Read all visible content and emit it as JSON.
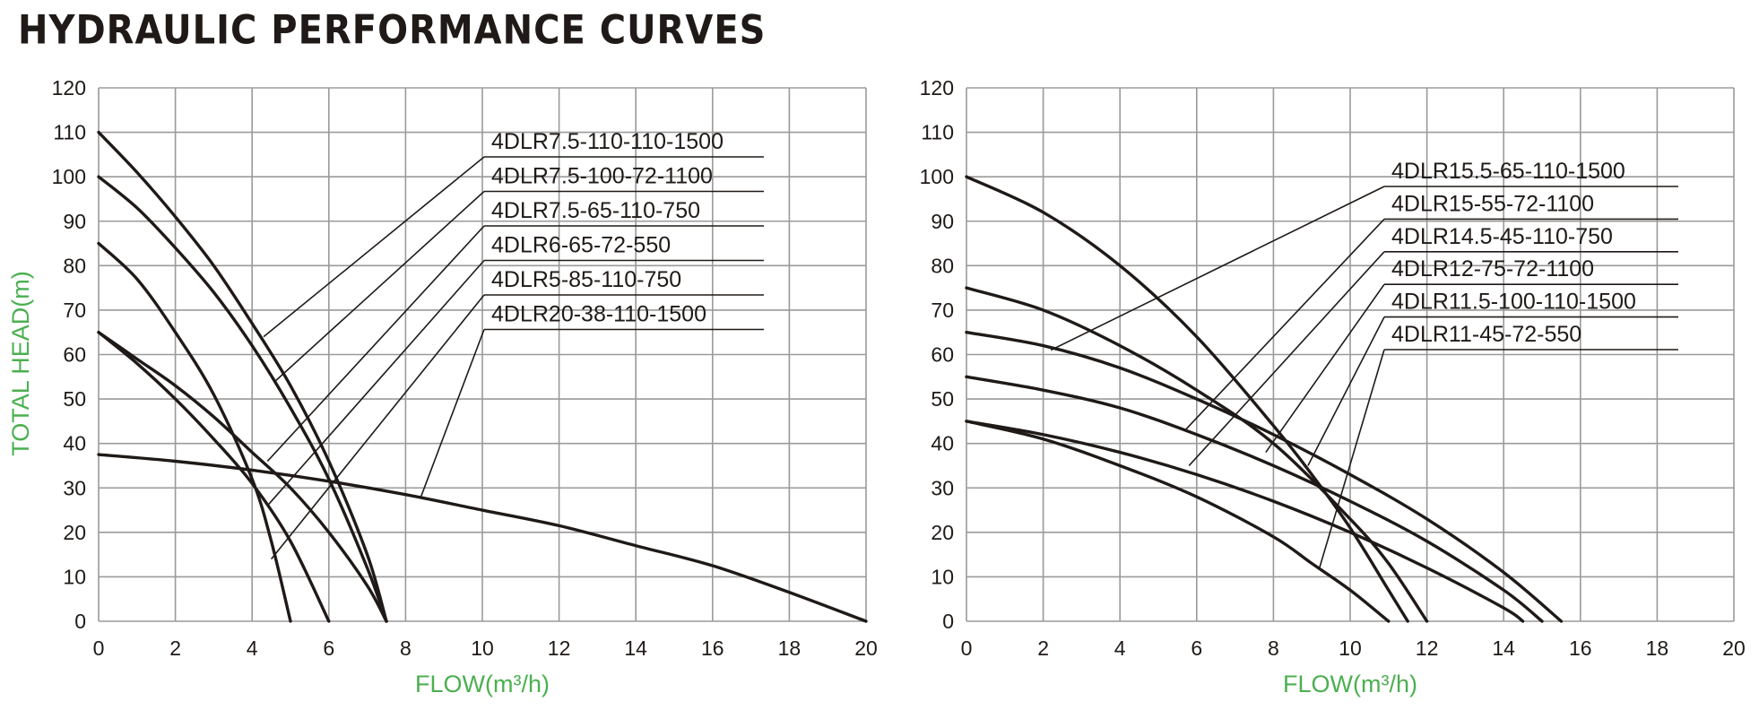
{
  "page": {
    "title": "HYDRAULIC PERFORMANCE CURVES"
  },
  "colors": {
    "grid": "#9a9a9a",
    "curve": "#1f1a17",
    "axis_label": "#4caf50",
    "text": "#1f1a17"
  },
  "chart_data": [
    {
      "type": "line",
      "title": "",
      "xlabel": "FLOW(m³/h)",
      "ylabel": "TOTAL HEAD(m)",
      "xlim": [
        0,
        20
      ],
      "ylim": [
        0,
        120
      ],
      "x_ticks": [
        "0",
        "2",
        "4",
        "6",
        "8",
        "10",
        "12",
        "14",
        "16",
        "18",
        "20"
      ],
      "y_ticks": [
        "0",
        "10",
        "20",
        "30",
        "40",
        "50",
        "60",
        "70",
        "80",
        "90",
        "100",
        "110",
        "120"
      ],
      "grid": true,
      "series": [
        {
          "name": "4DLR7.5-110-110-1500",
          "x": [
            0,
            1,
            2,
            3,
            4,
            5,
            6,
            7,
            7.5
          ],
          "y": [
            110,
            101,
            91,
            80,
            67,
            53,
            36,
            15,
            0
          ]
        },
        {
          "name": "4DLR7.5-100-72-1100",
          "x": [
            0,
            1,
            2,
            3,
            4,
            5,
            6,
            7,
            7.5
          ],
          "y": [
            100,
            93,
            84,
            74,
            62,
            48,
            32,
            12,
            0
          ]
        },
        {
          "name": "4DLR7.5-65-110-750",
          "x": [
            0,
            1,
            2,
            3,
            4,
            5,
            6,
            7,
            7.5
          ],
          "y": [
            65,
            59,
            53,
            46,
            38,
            30,
            20,
            8,
            0
          ]
        },
        {
          "name": "4DLR6-65-72-550",
          "x": [
            0,
            1,
            2,
            3,
            4,
            5,
            6
          ],
          "y": [
            65,
            58,
            50,
            41,
            31,
            18,
            0
          ]
        },
        {
          "name": "4DLR5-85-110-750",
          "x": [
            0,
            1,
            2,
            3,
            4,
            4.5,
            5
          ],
          "y": [
            85,
            77,
            65,
            51,
            32,
            18,
            0
          ]
        },
        {
          "name": "4DLR20-38-110-1500",
          "x": [
            0,
            2,
            4,
            6,
            8,
            10,
            12,
            14,
            16,
            18,
            20
          ],
          "y": [
            37.5,
            36,
            34,
            31.5,
            28.5,
            25,
            21.5,
            17,
            12.5,
            6.5,
            0
          ]
        }
      ],
      "legend": [
        {
          "label": "4DLR7.5-110-110-1500",
          "target": [
            4.3,
            64
          ]
        },
        {
          "label": "4DLR7.5-100-72-1100",
          "target": [
            4.6,
            54
          ]
        },
        {
          "label": "4DLR7.5-65-110-750",
          "target": [
            4.4,
            36
          ]
        },
        {
          "label": "4DLR6-65-72-550",
          "target": [
            4.4,
            26
          ]
        },
        {
          "label": "4DLR5-85-110-750",
          "target": [
            4.5,
            14
          ]
        },
        {
          "label": "4DLR20-38-110-1500",
          "target": [
            8.4,
            28
          ]
        }
      ],
      "legend_placement": "right"
    },
    {
      "type": "line",
      "title": "",
      "xlabel": "FLOW(m³/h)",
      "ylabel": "",
      "xlim": [
        0,
        20
      ],
      "ylim": [
        0,
        120
      ],
      "x_ticks": [
        "0",
        "2",
        "4",
        "6",
        "8",
        "10",
        "12",
        "14",
        "16",
        "18",
        "20"
      ],
      "y_ticks": [
        "0",
        "10",
        "20",
        "30",
        "40",
        "50",
        "60",
        "70",
        "80",
        "90",
        "100",
        "110",
        "120"
      ],
      "grid": true,
      "series": [
        {
          "name": "4DLR15.5-65-110-1500",
          "x": [
            0,
            2,
            4,
            6,
            8,
            10,
            12,
            14,
            15.5
          ],
          "y": [
            65,
            62,
            57,
            50,
            42,
            33,
            23,
            11,
            0
          ]
        },
        {
          "name": "4DLR15-55-72-1100",
          "x": [
            0,
            2,
            4,
            6,
            8,
            10,
            12,
            14,
            15
          ],
          "y": [
            55,
            52,
            48,
            42,
            35,
            27,
            18,
            7,
            0
          ]
        },
        {
          "name": "4DLR14.5-45-110-750",
          "x": [
            0,
            2,
            4,
            6,
            8,
            10,
            12,
            14,
            14.5
          ],
          "y": [
            45,
            42,
            38,
            33,
            27,
            20,
            12,
            3,
            0
          ]
        },
        {
          "name": "4DLR12-75-72-1100",
          "x": [
            0,
            2,
            4,
            6,
            8,
            10,
            11,
            12
          ],
          "y": [
            75,
            70,
            62,
            52,
            40,
            23,
            13,
            0
          ]
        },
        {
          "name": "4DLR11.5-100-110-1500",
          "x": [
            0,
            2,
            4,
            6,
            8,
            9,
            10,
            11,
            11.5
          ],
          "y": [
            100,
            92,
            80,
            64,
            44,
            33,
            21,
            7,
            0
          ]
        },
        {
          "name": "4DLR11-45-72-550",
          "x": [
            0,
            2,
            4,
            6,
            8,
            9,
            10,
            11
          ],
          "y": [
            45,
            41,
            35,
            28,
            19,
            13,
            7,
            0
          ]
        }
      ],
      "legend": [
        {
          "label": "4DLR15.5-65-110-1500",
          "target": [
            2.2,
            61
          ]
        },
        {
          "label": "4DLR15-55-72-1100",
          "target": [
            5.7,
            43
          ]
        },
        {
          "label": "4DLR14.5-45-110-750",
          "target": [
            5.8,
            35
          ]
        },
        {
          "label": "4DLR12-75-72-1100",
          "target": [
            7.8,
            38
          ]
        },
        {
          "label": "4DLR11.5-100-110-1500",
          "target": [
            8.9,
            35
          ]
        },
        {
          "label": "4DLR11-45-72-550",
          "target": [
            9.2,
            12
          ]
        }
      ],
      "legend_placement": "right"
    }
  ]
}
